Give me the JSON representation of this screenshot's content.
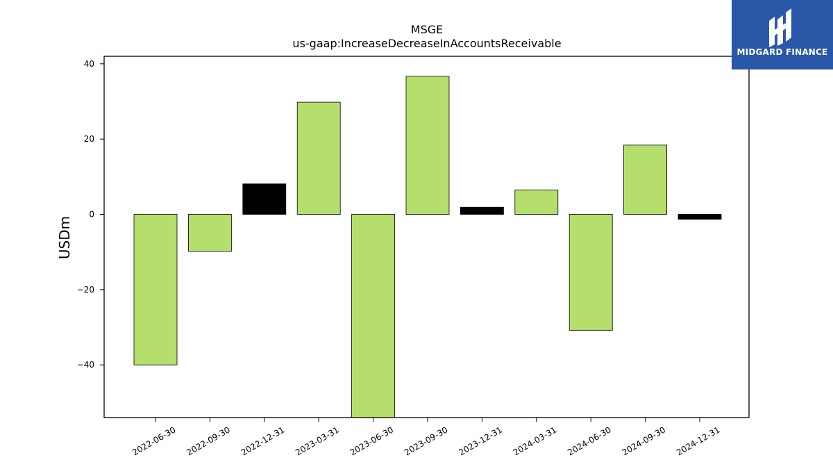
{
  "brand": {
    "name": "MIDGARD FINANCE",
    "bg_color": "#2a58a8"
  },
  "chart_data": {
    "type": "bar",
    "title": "MSGE",
    "subtitle": "us-gaap:IncreaseDecreaseInAccountsReceivable",
    "ylabel": "USDm",
    "xlabel": "",
    "ylim": [
      -54,
      42
    ],
    "yticks": [
      40,
      20,
      0,
      -20,
      -40
    ],
    "ytick_labels": [
      "40",
      "20",
      "0",
      "−20",
      "−40"
    ],
    "categories": [
      "2022-06-30",
      "2022-09-30",
      "2022-12-31",
      "2023-03-31",
      "2023-06-30",
      "2023-09-30",
      "2023-12-31",
      "2024-03-31",
      "2024-06-30",
      "2024-09-30",
      "2024-12-31"
    ],
    "values": [
      -40,
      -9.8,
      8.1,
      29.8,
      -54,
      36.7,
      1.9,
      6.5,
      -30.8,
      18.4,
      -1.3
    ],
    "bar_colors": [
      "#b5df6c",
      "#b5df6c",
      "#000000",
      "#b5df6c",
      "#b5df6c",
      "#b5df6c",
      "#000000",
      "#b5df6c",
      "#b5df6c",
      "#b5df6c",
      "#000000"
    ],
    "grid": false,
    "legend": "none"
  }
}
